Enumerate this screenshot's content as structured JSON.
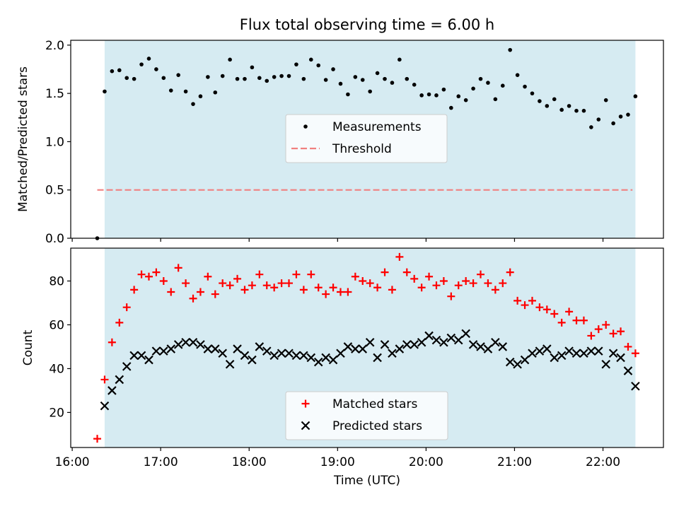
{
  "figure": {
    "title": "Flux total observing time = 6.00 h",
    "highlight_color": "#add8e6",
    "highlight_range": [
      "16:22",
      "22:22"
    ]
  },
  "chart_data": [
    {
      "type": "scatter",
      "ylabel": "Matched/Predicted stars",
      "ylim": [
        0,
        2.05
      ],
      "yticks": [
        0.0,
        0.5,
        1.0,
        1.5,
        2.0
      ],
      "ytick_labels": [
        "0.0",
        "0.5",
        "1.0",
        "1.5",
        "2.0"
      ],
      "xlim": [
        "15:59",
        "22:41"
      ],
      "legend": {
        "position": "center",
        "entries": [
          "Measurements",
          "Threshold"
        ]
      },
      "threshold": {
        "name": "Threshold",
        "value": 0.5,
        "x_range": [
          "16:17",
          "22:20"
        ],
        "color": "#f08080",
        "style": "dashed"
      },
      "series": [
        {
          "name": "Measurements",
          "color": "#000000",
          "x": [
            "16:17",
            "16:22",
            "16:27",
            "16:32",
            "16:37",
            "16:42",
            "16:47",
            "16:52",
            "16:57",
            "17:02",
            "17:07",
            "17:12",
            "17:17",
            "17:22",
            "17:27",
            "17:32",
            "17:37",
            "17:42",
            "17:47",
            "17:52",
            "17:57",
            "18:02",
            "18:07",
            "18:12",
            "18:17",
            "18:22",
            "18:27",
            "18:32",
            "18:37",
            "18:42",
            "18:47",
            "18:52",
            "18:57",
            "19:02",
            "19:07",
            "19:12",
            "19:17",
            "19:22",
            "19:27",
            "19:32",
            "19:37",
            "19:42",
            "19:47",
            "19:52",
            "19:57",
            "20:02",
            "20:07",
            "20:12",
            "20:17",
            "20:22",
            "20:27",
            "20:32",
            "20:37",
            "20:42",
            "20:47",
            "20:52",
            "20:57",
            "21:02",
            "21:07",
            "21:12",
            "21:17",
            "21:22",
            "21:27",
            "21:32",
            "21:37",
            "21:42",
            "21:47",
            "21:52",
            "21:57",
            "22:02",
            "22:07",
            "22:12",
            "22:17",
            "22:22"
          ],
          "values": [
            0.0,
            1.52,
            1.73,
            1.74,
            1.66,
            1.65,
            1.8,
            1.86,
            1.75,
            1.66,
            1.53,
            1.69,
            1.52,
            1.39,
            1.47,
            1.67,
            1.51,
            1.68,
            1.85,
            1.65,
            1.65,
            1.77,
            1.66,
            1.63,
            1.67,
            1.68,
            1.68,
            1.8,
            1.65,
            1.85,
            1.79,
            1.64,
            1.75,
            1.6,
            1.49,
            1.67,
            1.64,
            1.52,
            1.71,
            1.65,
            1.61,
            1.85,
            1.65,
            1.59,
            1.48,
            1.49,
            1.48,
            1.54,
            1.35,
            1.47,
            1.43,
            1.55,
            1.65,
            1.61,
            1.44,
            1.58,
            1.95,
            1.69,
            1.57,
            1.5,
            1.42,
            1.37,
            1.44,
            1.33,
            1.37,
            1.32,
            1.32,
            1.15,
            1.23,
            1.43,
            1.19,
            1.26,
            1.28,
            1.47
          ]
        }
      ]
    },
    {
      "type": "scatter",
      "xlabel": "Time (UTC)",
      "ylabel": "Count",
      "xlim": [
        "15:59",
        "22:41"
      ],
      "xticks": [
        "16:00",
        "17:00",
        "18:00",
        "19:00",
        "20:00",
        "21:00",
        "22:00"
      ],
      "ylim": [
        4,
        95
      ],
      "yticks": [
        20,
        40,
        60,
        80
      ],
      "legend": {
        "position": "lower center",
        "entries": [
          "Matched stars",
          "Predicted stars"
        ]
      },
      "series": [
        {
          "name": "Matched stars",
          "marker": "plus",
          "color": "#ff0000",
          "x": [
            "16:17",
            "16:22",
            "16:27",
            "16:32",
            "16:37",
            "16:42",
            "16:47",
            "16:52",
            "16:57",
            "17:02",
            "17:07",
            "17:12",
            "17:17",
            "17:22",
            "17:27",
            "17:32",
            "17:37",
            "17:42",
            "17:47",
            "17:52",
            "17:57",
            "18:02",
            "18:07",
            "18:12",
            "18:17",
            "18:22",
            "18:27",
            "18:32",
            "18:37",
            "18:42",
            "18:47",
            "18:52",
            "18:57",
            "19:02",
            "19:07",
            "19:12",
            "19:17",
            "19:22",
            "19:27",
            "19:32",
            "19:37",
            "19:42",
            "19:47",
            "19:52",
            "19:57",
            "20:02",
            "20:07",
            "20:12",
            "20:17",
            "20:22",
            "20:27",
            "20:32",
            "20:37",
            "20:42",
            "20:47",
            "20:52",
            "20:57",
            "21:02",
            "21:07",
            "21:12",
            "21:17",
            "21:22",
            "21:27",
            "21:32",
            "21:37",
            "21:42",
            "21:47",
            "21:52",
            "21:57",
            "22:02",
            "22:07",
            "22:12",
            "22:17",
            "22:22"
          ],
          "values": [
            8,
            35,
            52,
            61,
            68,
            76,
            83,
            82,
            84,
            80,
            75,
            86,
            79,
            72,
            75,
            82,
            74,
            79,
            78,
            81,
            76,
            78,
            83,
            78,
            77,
            79,
            79,
            83,
            76,
            83,
            77,
            74,
            77,
            75,
            75,
            82,
            80,
            79,
            77,
            84,
            76,
            91,
            84,
            81,
            77,
            82,
            78,
            80,
            73,
            78,
            80,
            79,
            83,
            79,
            76,
            79,
            84,
            71,
            69,
            71,
            68,
            67,
            65,
            61,
            66,
            62,
            62,
            55,
            58,
            60,
            56,
            57,
            50,
            47
          ]
        },
        {
          "name": "Predicted stars",
          "marker": "x",
          "color": "#000000",
          "x": [
            "16:22",
            "16:27",
            "16:32",
            "16:37",
            "16:42",
            "16:47",
            "16:52",
            "16:57",
            "17:02",
            "17:07",
            "17:12",
            "17:17",
            "17:22",
            "17:27",
            "17:32",
            "17:37",
            "17:42",
            "17:47",
            "17:52",
            "17:57",
            "18:02",
            "18:07",
            "18:12",
            "18:17",
            "18:22",
            "18:27",
            "18:32",
            "18:37",
            "18:42",
            "18:47",
            "18:52",
            "18:57",
            "19:02",
            "19:07",
            "19:12",
            "19:17",
            "19:22",
            "19:27",
            "19:32",
            "19:37",
            "19:42",
            "19:47",
            "19:52",
            "19:57",
            "20:02",
            "20:07",
            "20:12",
            "20:17",
            "20:22",
            "20:27",
            "20:32",
            "20:37",
            "20:42",
            "20:47",
            "20:52",
            "20:57",
            "21:02",
            "21:07",
            "21:12",
            "21:17",
            "21:22",
            "21:27",
            "21:32",
            "21:37",
            "21:42",
            "21:47",
            "21:52",
            "21:57",
            "22:02",
            "22:07",
            "22:12",
            "22:17",
            "22:22"
          ],
          "values": [
            23,
            30,
            35,
            41,
            46,
            46,
            44,
            48,
            48,
            49,
            51,
            52,
            52,
            51,
            49,
            49,
            47,
            42,
            49,
            46,
            44,
            50,
            48,
            46,
            47,
            47,
            46,
            46,
            45,
            43,
            45,
            44,
            47,
            50,
            49,
            49,
            52,
            45,
            51,
            47,
            49,
            51,
            51,
            52,
            55,
            53,
            52,
            54,
            53,
            56,
            51,
            50,
            49,
            52,
            50,
            43,
            42,
            44,
            47,
            48,
            49,
            45,
            46,
            48,
            47,
            47,
            48,
            48,
            42,
            47,
            45,
            39,
            32
          ]
        }
      ]
    }
  ]
}
